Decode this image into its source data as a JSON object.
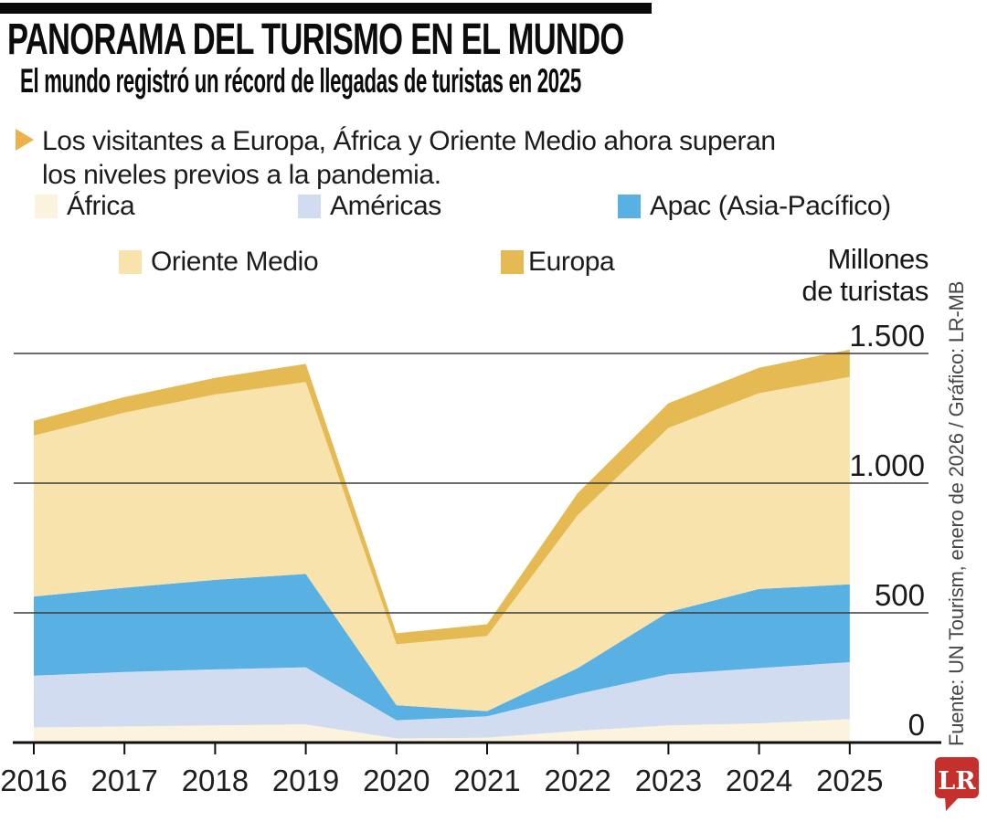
{
  "header": {
    "title": "PANORAMA DEL TURISMO EN EL MUNDO",
    "subtitle": "El mundo registró un récord de llegadas de turistas en 2025"
  },
  "highlight": {
    "line1": "Los visitantes a Europa, África y Oriente Medio ahora superan",
    "line2": "los niveles previos a la pandemia."
  },
  "axis_unit": {
    "line1": "Millones",
    "line2": "de turistas"
  },
  "source": "Fuente: UN Tourism, enero de 2026 / Gráfico: LR-MB",
  "logo_text": "LR",
  "colors": {
    "accent_bullet": "#ecb14a",
    "grid": "#3c3c3c",
    "axis": "#111111",
    "tick_label": "#1a1a1a",
    "logo_red": "#c5302c"
  },
  "chart_data": {
    "type": "area",
    "stacked": true,
    "title": "El mundo registró un récord de llegadas de turistas en 2025",
    "categories": [
      "2016",
      "2017",
      "2018",
      "2019",
      "2020",
      "2021",
      "2022",
      "2023",
      "2024",
      "2025"
    ],
    "series": [
      {
        "name": "África",
        "color": "#fcf3de",
        "values": [
          58,
          62,
          66,
          70,
          16,
          19,
          45,
          66,
          74,
          90
        ]
      },
      {
        "name": "Américas",
        "color": "#d2dcf0",
        "values": [
          200,
          210,
          216,
          220,
          70,
          82,
          142,
          197,
          213,
          220
        ]
      },
      {
        "name": "Apac (Asia-Pacífico)",
        "color": "#58b0e3",
        "values": [
          305,
          325,
          345,
          360,
          58,
          20,
          100,
          240,
          305,
          300
        ]
      },
      {
        "name": "Oriente Medio",
        "color": "#f9e3ac",
        "values": [
          620,
          675,
          715,
          740,
          235,
          290,
          590,
          710,
          755,
          800
        ]
      },
      {
        "name": "Europa",
        "color": "#e5ba52",
        "values": [
          57,
          60,
          64,
          70,
          42,
          45,
          85,
          95,
          98,
          105
        ]
      }
    ],
    "ylabel": "Millones de turistas",
    "xlabel": "",
    "ylim": [
      0,
      1560
    ],
    "yticks": [
      0,
      500,
      1000,
      1500
    ],
    "ytick_labels": [
      "0",
      "500",
      "1.000",
      "1.500"
    ],
    "grid": true,
    "legend_position": "top"
  }
}
